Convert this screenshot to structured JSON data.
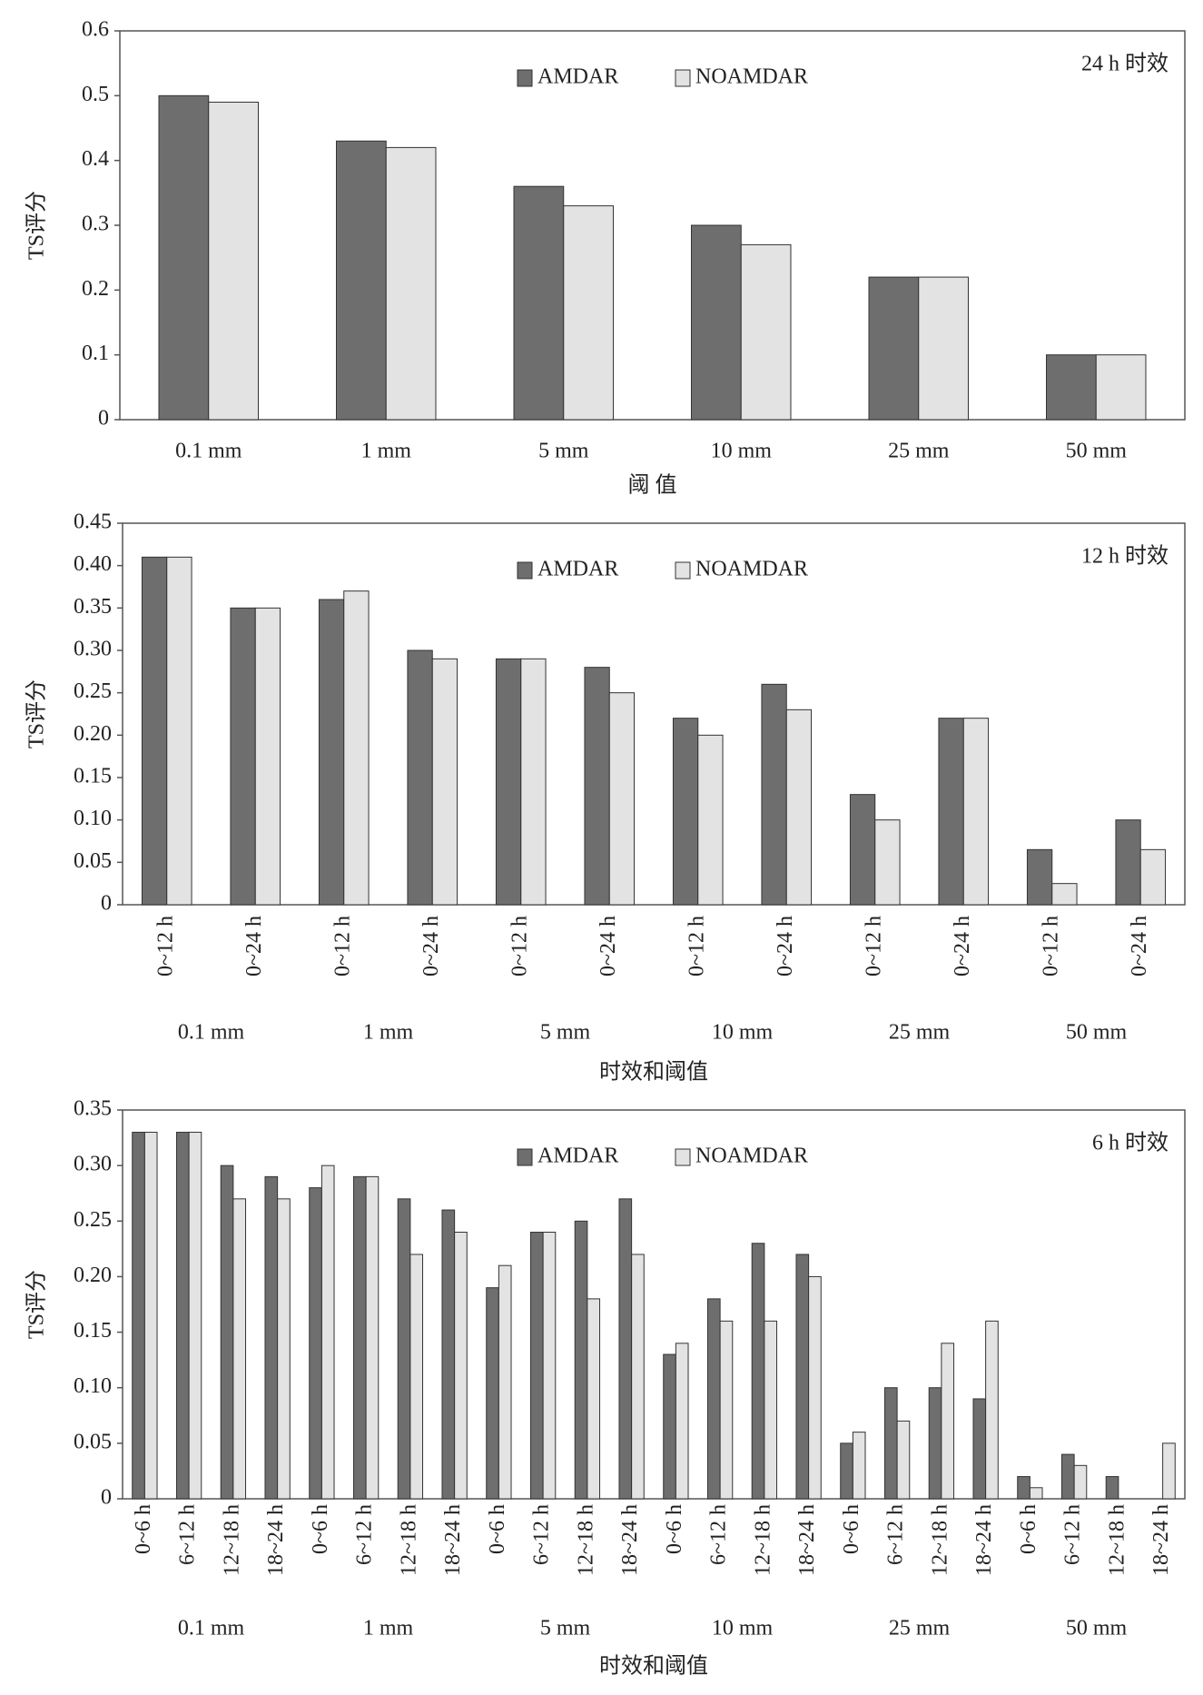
{
  "chart_data": [
    {
      "type": "bar",
      "annotation": "24 h 时效",
      "xlabel": "阈 值",
      "ylabel": "TS评分",
      "categories": [
        "0.1 mm",
        "1 mm",
        "5 mm",
        "10 mm",
        "25 mm",
        "50 mm"
      ],
      "series": [
        {
          "name": "AMDAR",
          "color": "#6e6e6e",
          "values": [
            0.5,
            0.43,
            0.36,
            0.3,
            0.22,
            0.1
          ]
        },
        {
          "name": "NOAMDAR",
          "color": "#e3e3e3",
          "values": [
            0.49,
            0.42,
            0.33,
            0.27,
            0.22,
            0.1
          ]
        }
      ],
      "ylim": [
        0,
        0.6
      ],
      "yticks": [
        0,
        0.1,
        0.2,
        0.3,
        0.4,
        0.5,
        0.6
      ]
    },
    {
      "type": "bar",
      "annotation": "12 h 时效",
      "xlabel": "时效和阈值",
      "ylabel": "TS评分",
      "categories": [
        "0~12 h",
        "0~24 h",
        "0~12 h",
        "0~24 h",
        "0~12 h",
        "0~24 h",
        "0~12 h",
        "0~24 h",
        "0~12 h",
        "0~24 h",
        "0~12 h",
        "0~24 h"
      ],
      "groups": [
        "0.1 mm",
        "1 mm",
        "5 mm",
        "10 mm",
        "25 mm",
        "50 mm"
      ],
      "series": [
        {
          "name": "AMDAR",
          "color": "#6e6e6e",
          "values": [
            0.41,
            0.35,
            0.36,
            0.3,
            0.29,
            0.28,
            0.22,
            0.26,
            0.13,
            0.22,
            0.065,
            0.1
          ]
        },
        {
          "name": "NOAMDAR",
          "color": "#e3e3e3",
          "values": [
            0.41,
            0.35,
            0.37,
            0.29,
            0.29,
            0.25,
            0.2,
            0.23,
            0.1,
            0.22,
            0.025,
            0.065
          ]
        }
      ],
      "ylim": [
        0,
        0.45
      ],
      "yticks": [
        0,
        0.05,
        {
          "value": 0.1,
          "label": "0.10"
        },
        0.15,
        {
          "value": 0.2,
          "label": "0.20"
        },
        0.25,
        {
          "value": 0.3,
          "label": "0.30"
        },
        0.35,
        {
          "value": 0.4,
          "label": "0.40"
        },
        0.45
      ]
    },
    {
      "type": "bar",
      "annotation": "6 h 时效",
      "xlabel": "时效和阈值",
      "ylabel": "TS评分",
      "categories": [
        "0~6 h",
        "6~12 h",
        "12~18 h",
        "18~24 h",
        "0~6 h",
        "6~12 h",
        "12~18 h",
        "18~24 h",
        "0~6 h",
        "6~12 h",
        "12~18 h",
        "18~24 h",
        "0~6 h",
        "6~12 h",
        "12~18 h",
        "18~24 h",
        "0~6 h",
        "6~12 h",
        "12~18 h",
        "18~24 h",
        "0~6 h",
        "6~12 h",
        "12~18 h",
        "18~24 h"
      ],
      "groups": [
        "0.1 mm",
        "1 mm",
        "5 mm",
        "10 mm",
        "25 mm",
        "50 mm"
      ],
      "series": [
        {
          "name": "AMDAR",
          "color": "#6e6e6e",
          "values": [
            0.33,
            0.33,
            0.3,
            0.29,
            0.28,
            0.29,
            0.27,
            0.26,
            0.19,
            0.24,
            0.25,
            0.27,
            0.13,
            0.18,
            0.23,
            0.22,
            0.05,
            0.1,
            0.1,
            0.09,
            0.02,
            0.04,
            0.02,
            0
          ]
        },
        {
          "name": "NOAMDAR",
          "color": "#e3e3e3",
          "values": [
            0.33,
            0.33,
            0.27,
            0.27,
            0.3,
            0.29,
            0.22,
            0.24,
            0.21,
            0.24,
            0.18,
            0.22,
            0.14,
            0.16,
            0.16,
            0.2,
            0.06,
            0.07,
            0.14,
            0.16,
            0.01,
            0.03,
            0,
            0.05
          ]
        }
      ],
      "ylim": [
        0,
        0.35
      ],
      "yticks": [
        0,
        0.05,
        {
          "value": 0.1,
          "label": "0.10"
        },
        0.15,
        {
          "value": 0.2,
          "label": "0.20"
        },
        0.25,
        {
          "value": 0.3,
          "label": "0.30"
        },
        0.35
      ]
    }
  ]
}
